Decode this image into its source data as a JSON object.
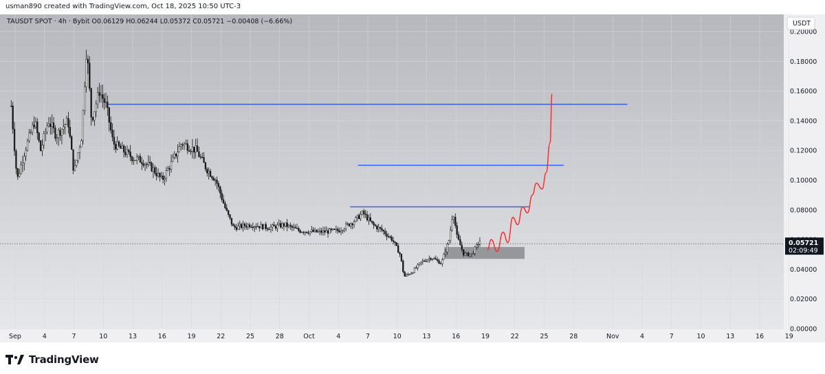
{
  "header": {
    "caption": "usman890 created with TradingView.com, Oct 18, 2025 10:50 UTC-3"
  },
  "footer": {
    "brand": "TradingView",
    "logo_icon": "tradingview-logo-icon"
  },
  "colors": {
    "background": "#c9cbd0",
    "candle_up": "#ffffff",
    "candle_down": "#1a1a1a",
    "wick": "#111111",
    "level_line": "#2457ff",
    "projection": "#ff2b2b",
    "zone": "#8e8f93"
  },
  "chart_data": {
    "type": "candlestick",
    "symbol_line": "TAUSDT SPOT · 4h · Bybit",
    "ohlc": {
      "open": "O0.06129",
      "high": "H0.06244",
      "low": "L0.05372",
      "close": "C0.05721",
      "change": "−0.00408 (−6.66%)"
    },
    "currency_button": "USDT",
    "y_ticks": [
      "0.20000",
      "0.18000",
      "0.16000",
      "0.14000",
      "0.12000",
      "0.10000",
      "0.08000",
      "0.06000",
      "0.04000",
      "0.02000",
      "0.00000"
    ],
    "y_tick_values": [
      0.2,
      0.18,
      0.16,
      0.14,
      0.12,
      0.1,
      0.08,
      0.06,
      0.04,
      0.02,
      0.0
    ],
    "x_ticks": [
      {
        "label": "Sep",
        "day": 1
      },
      {
        "label": "4",
        "day": 4
      },
      {
        "label": "7",
        "day": 7
      },
      {
        "label": "10",
        "day": 10
      },
      {
        "label": "13",
        "day": 13
      },
      {
        "label": "16",
        "day": 16
      },
      {
        "label": "19",
        "day": 19
      },
      {
        "label": "22",
        "day": 22
      },
      {
        "label": "25",
        "day": 25
      },
      {
        "label": "28",
        "day": 28
      },
      {
        "label": "Oct",
        "day": 31
      },
      {
        "label": "4",
        "day": 34
      },
      {
        "label": "7",
        "day": 37
      },
      {
        "label": "10",
        "day": 40
      },
      {
        "label": "13",
        "day": 43
      },
      {
        "label": "16",
        "day": 46
      },
      {
        "label": "19",
        "day": 49
      },
      {
        "label": "22",
        "day": 52
      },
      {
        "label": "25",
        "day": 55
      },
      {
        "label": "28",
        "day": 58
      },
      {
        "label": "Nov",
        "day": 62
      },
      {
        "label": "4",
        "day": 65
      },
      {
        "label": "7",
        "day": 68
      },
      {
        "label": "10",
        "day": 71
      },
      {
        "label": "13",
        "day": 74
      },
      {
        "label": "16",
        "day": 77
      },
      {
        "label": "19",
        "day": 80
      }
    ],
    "price_label": {
      "value": "0.05721",
      "countdown": "02:09:49",
      "price": 0.05721
    },
    "trend_points": [
      [
        0.6,
        0.15
      ],
      [
        1.2,
        0.1
      ],
      [
        2.0,
        0.12
      ],
      [
        3.0,
        0.14
      ],
      [
        3.6,
        0.12
      ],
      [
        4.4,
        0.14
      ],
      [
        5.2,
        0.13
      ],
      [
        6.4,
        0.14
      ],
      [
        7.0,
        0.105
      ],
      [
        7.8,
        0.13
      ],
      [
        8.3,
        0.19
      ],
      [
        8.8,
        0.14
      ],
      [
        9.6,
        0.16
      ],
      [
        10.3,
        0.15
      ],
      [
        11.0,
        0.125
      ],
      [
        12.0,
        0.12
      ],
      [
        13.0,
        0.115
      ],
      [
        14.0,
        0.113
      ],
      [
        15.0,
        0.108
      ],
      [
        16.0,
        0.1
      ],
      [
        17.0,
        0.112
      ],
      [
        18.0,
        0.125
      ],
      [
        19.5,
        0.12
      ],
      [
        20.5,
        0.108
      ],
      [
        21.5,
        0.1
      ],
      [
        22.5,
        0.08
      ],
      [
        23.3,
        0.068
      ],
      [
        25.0,
        0.07
      ],
      [
        27.0,
        0.068
      ],
      [
        28.5,
        0.07
      ],
      [
        30.0,
        0.066
      ],
      [
        32.0,
        0.065
      ],
      [
        34.0,
        0.066
      ],
      [
        35.5,
        0.072
      ],
      [
        36.5,
        0.078
      ],
      [
        37.5,
        0.07
      ],
      [
        38.5,
        0.066
      ],
      [
        39.5,
        0.06
      ],
      [
        40.3,
        0.05
      ],
      [
        40.7,
        0.035
      ],
      [
        41.5,
        0.038
      ],
      [
        42.5,
        0.045
      ],
      [
        43.5,
        0.048
      ],
      [
        44.5,
        0.044
      ],
      [
        45.3,
        0.06
      ],
      [
        45.7,
        0.08
      ],
      [
        46.1,
        0.062
      ],
      [
        46.8,
        0.05
      ],
      [
        47.6,
        0.05
      ],
      [
        48.5,
        0.06
      ]
    ],
    "horizontal_levels": [
      {
        "price": 0.151,
        "from_day": 10.5,
        "to_day": 63.5
      },
      {
        "price": 0.11,
        "from_day": 36.0,
        "to_day": 57.0
      },
      {
        "price": 0.082,
        "from_day": 35.2,
        "to_day": 53.5
      }
    ],
    "zone": {
      "from_day": 44.8,
      "to_day": 53.0,
      "top": 0.055,
      "bottom": 0.047
    },
    "projection_path": [
      [
        49.2,
        0.053
      ],
      [
        49.6,
        0.06
      ],
      [
        50.2,
        0.052
      ],
      [
        50.8,
        0.065
      ],
      [
        51.3,
        0.058
      ],
      [
        51.8,
        0.075
      ],
      [
        52.3,
        0.07
      ],
      [
        52.8,
        0.082
      ],
      [
        53.3,
        0.078
      ],
      [
        53.8,
        0.09
      ],
      [
        54.2,
        0.098
      ],
      [
        54.8,
        0.094
      ],
      [
        55.2,
        0.105
      ],
      [
        55.6,
        0.125
      ],
      [
        55.8,
        0.158
      ]
    ]
  }
}
